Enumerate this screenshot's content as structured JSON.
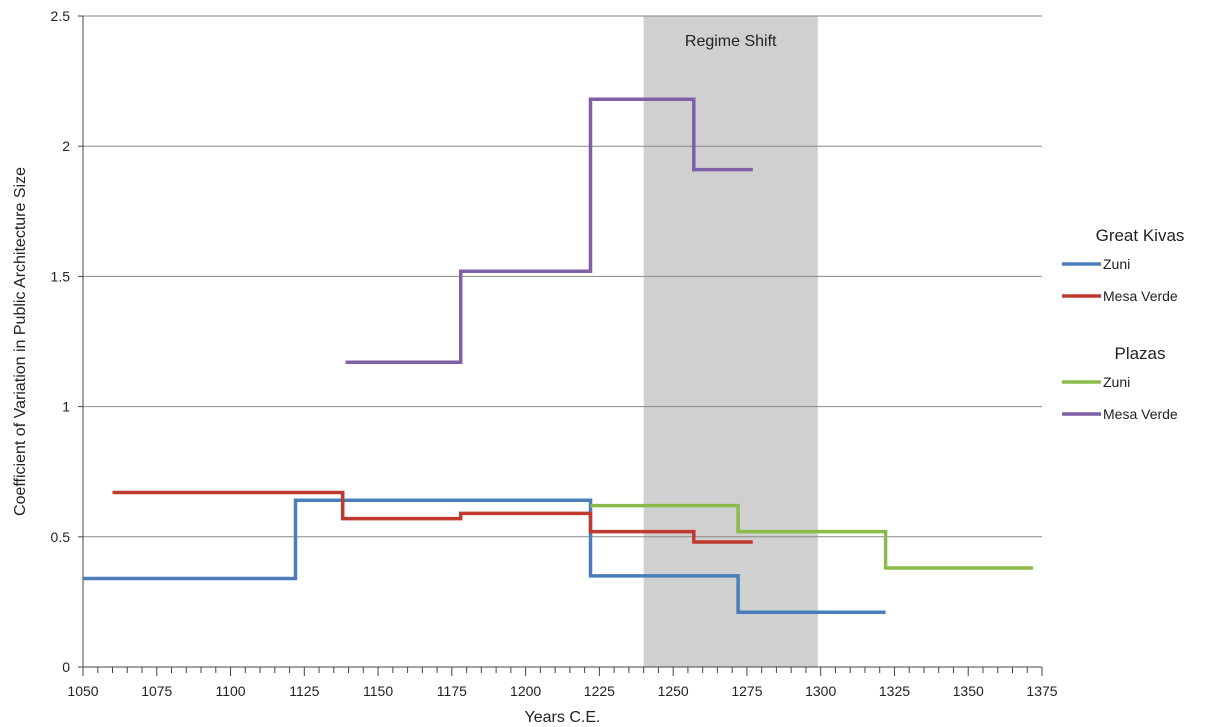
{
  "chart_data": {
    "type": "line",
    "step": true,
    "title": "",
    "xlabel": "Years C.E.",
    "ylabel": "Coefficient of Variation in Public Architecture Size",
    "xlim": [
      1050,
      1375
    ],
    "ylim": [
      0,
      2.5
    ],
    "x_ticks": [
      "1050",
      "1075",
      "1100",
      "1125",
      "1150",
      "1175",
      "1200",
      "1225",
      "1250",
      "1275",
      "1300",
      "1325",
      "1350",
      "1375"
    ],
    "y_ticks": [
      "0",
      "0.5",
      "1",
      "1.5",
      "2",
      "2.5"
    ],
    "grid": true,
    "shaded_region": {
      "x": [
        1240,
        1299
      ],
      "label": "Regime Shift",
      "color": "#d0d0d0"
    },
    "legend_groups": [
      {
        "title": "Great Kivas",
        "items": [
          "Zuni",
          "Mesa Verde"
        ]
      },
      {
        "title": "Plazas",
        "items": [
          "Zuni",
          "Mesa Verde"
        ]
      }
    ],
    "series": [
      {
        "name": "Zuni",
        "group": "Great Kivas",
        "color": "#4a7ebb",
        "points": [
          [
            1050,
            0.34
          ],
          [
            1122,
            0.34
          ],
          [
            1122,
            0.64
          ],
          [
            1222,
            0.64
          ],
          [
            1222,
            0.35
          ],
          [
            1272,
            0.35
          ],
          [
            1272,
            0.21
          ],
          [
            1322,
            0.21
          ]
        ]
      },
      {
        "name": "Mesa Verde",
        "group": "Great Kivas",
        "color": "#c0392f",
        "points": [
          [
            1060,
            0.67
          ],
          [
            1138,
            0.67
          ],
          [
            1138,
            0.57
          ],
          [
            1178,
            0.57
          ],
          [
            1178,
            0.59
          ],
          [
            1222,
            0.59
          ],
          [
            1222,
            0.52
          ],
          [
            1257,
            0.52
          ],
          [
            1257,
            0.48
          ],
          [
            1277,
            0.48
          ]
        ]
      },
      {
        "name": "Zuni",
        "group": "Plazas",
        "color": "#8bbb4a",
        "points": [
          [
            1222,
            0.62
          ],
          [
            1272,
            0.62
          ],
          [
            1272,
            0.52
          ],
          [
            1322,
            0.52
          ],
          [
            1322,
            0.38
          ],
          [
            1372,
            0.38
          ]
        ]
      },
      {
        "name": "Mesa Verde",
        "group": "Plazas",
        "color": "#7f5fa6",
        "points": [
          [
            1139,
            1.17
          ],
          [
            1178,
            1.17
          ],
          [
            1178,
            1.52
          ],
          [
            1222,
            1.52
          ],
          [
            1222,
            2.18
          ],
          [
            1257,
            2.18
          ],
          [
            1257,
            1.91
          ],
          [
            1277,
            1.91
          ]
        ]
      }
    ]
  }
}
